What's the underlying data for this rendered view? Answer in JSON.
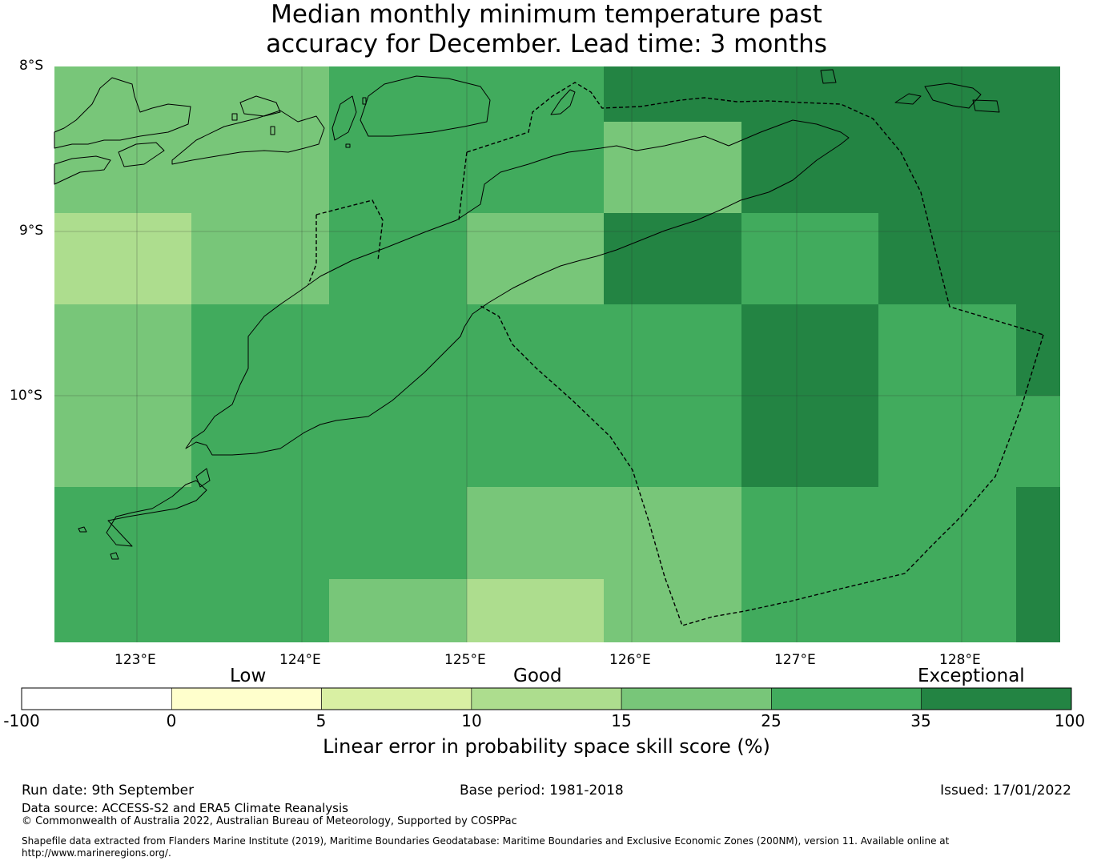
{
  "title": {
    "line1": "Median monthly minimum temperature past",
    "line2": "accuracy for December. Lead time: 3 months"
  },
  "map": {
    "lat_labels": [
      "8°S",
      "9°S",
      "10°S"
    ],
    "lon_labels": [
      "123°E",
      "124°E",
      "125°E",
      "126°E",
      "127°E",
      "128°E"
    ],
    "extent": {
      "lon_min": 122.5,
      "lon_max": 128.6,
      "lat_max": -8.0,
      "lat_min": -11.5
    },
    "legend_colors": {
      "c15_25": "#78c679",
      "c10_15": "#addd8e",
      "c25_35": "#41ab5d",
      "c35_100": "#238443"
    }
  },
  "colorbar": {
    "category_words": [
      "Low",
      "Good",
      "Exceptional"
    ],
    "ticks": [
      "-100",
      "0",
      "5",
      "10",
      "15",
      "25",
      "35",
      "100"
    ],
    "colors": [
      "#ffffff",
      "#ffffcc",
      "#d9f0a3",
      "#addd8e",
      "#78c679",
      "#41ab5d",
      "#238443"
    ],
    "caption": "Linear error in probability space skill score (%)"
  },
  "footer": {
    "run_date": "Run date: 9th September",
    "base_period": "Base period: 1981-2018",
    "issued": "Issued: 17/01/2022",
    "data_source": "Data source: ACCESS-S2 and ERA5 Climate Reanalysis",
    "copyright": "© Commonwealth of Australia 2022, Australian Bureau of Meteorology, Supported by COSPPac",
    "shapefile_line1": "Shapefile data extracted from Flanders Marine Institute (2019), Maritime Boundaries Geodatabase: Maritime Boundaries and Exclusive Economic Zones (200NM), version 11. Available online at",
    "shapefile_line2": "http://www.marineregions.org/."
  }
}
